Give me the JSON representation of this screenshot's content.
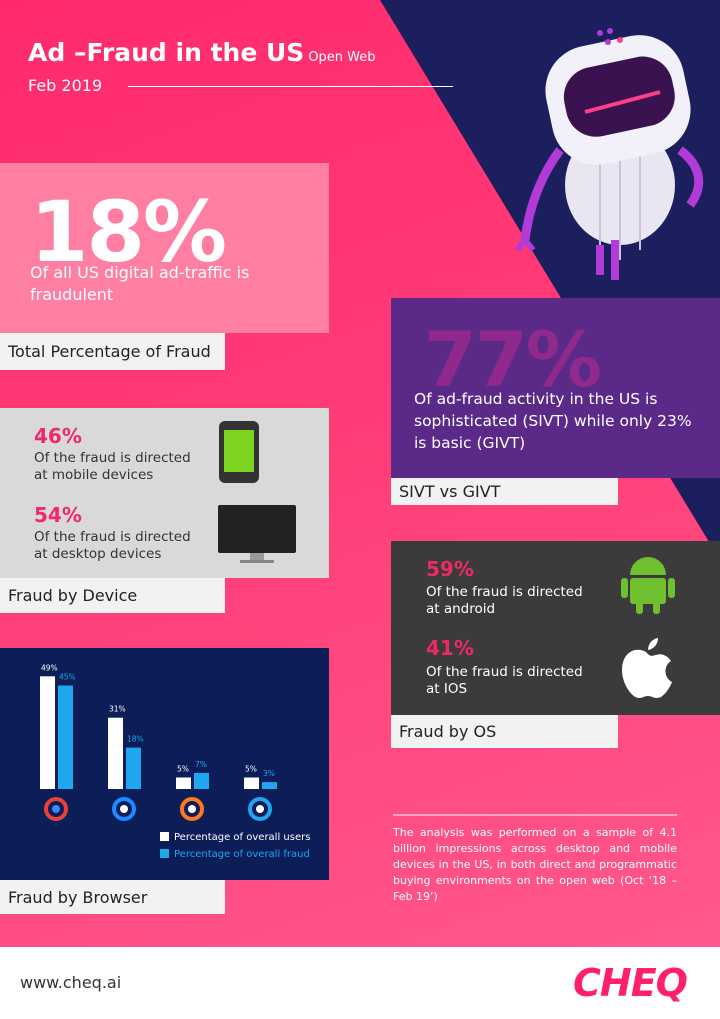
{
  "header": {
    "title": "Ad –Fraud in the US",
    "subtitle": "Open Web",
    "date": "Feb 2019"
  },
  "total": {
    "value": "18%",
    "text": "Of all US digital ad-traffic is fraudulent",
    "label": "Total Percentage of Fraud"
  },
  "device": {
    "items": [
      {
        "value": "46%",
        "text": "Of the fraud is directed at mobile devices"
      },
      {
        "value": "54%",
        "text": "Of the fraud is directed at desktop devices"
      }
    ],
    "label": "Fraud by Device"
  },
  "chart_data": {
    "type": "bar",
    "categories": [
      null,
      null,
      null,
      null
    ],
    "series": [
      {
        "name": "Percentage of overall users",
        "color": "#ffffff",
        "values": [
          49,
          31,
          5,
          5
        ],
        "value_labels": [
          "49%",
          "31%",
          "5%",
          "5%"
        ]
      },
      {
        "name": "Percentage of overall fraud",
        "color": "#1ea7ee",
        "values": [
          45,
          18,
          7,
          3
        ],
        "value_labels": [
          "45%",
          "18%",
          "7%",
          "3%"
        ]
      }
    ]
  },
  "browser_label": "Fraud by Browser",
  "sivt": {
    "value": "77%",
    "text": "Of ad-fraud activity in the US is sophisticated (SIVT) while only 23% is basic (GIVT)",
    "label": "SIVT vs GIVT"
  },
  "os": {
    "items": [
      {
        "value": "59%",
        "text": "Of the fraud is directed at android"
      },
      {
        "value": "41%",
        "text": "Of the fraud is directed at IOS"
      }
    ],
    "label": "Fraud by OS"
  },
  "note": "The analysis was performed on a sample of 4.1 billion impressions across desktop and mobile devices in the US, in both direct and programmatic buying environments on the open web (Oct ‘18 – Feb 19’)",
  "footer": {
    "url": "www.cheq.ai",
    "brand": "CHEQ"
  }
}
